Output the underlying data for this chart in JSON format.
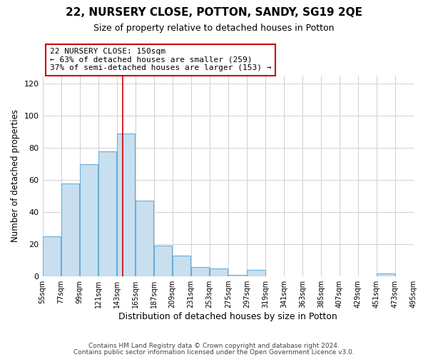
{
  "title": "22, NURSERY CLOSE, POTTON, SANDY, SG19 2QE",
  "subtitle": "Size of property relative to detached houses in Potton",
  "xlabel": "Distribution of detached houses by size in Potton",
  "ylabel": "Number of detached properties",
  "footer_line1": "Contains HM Land Registry data © Crown copyright and database right 2024.",
  "footer_line2": "Contains public sector information licensed under the Open Government Licence v3.0.",
  "bar_left_edges": [
    55,
    77,
    99,
    121,
    143,
    165,
    187,
    209,
    231,
    253,
    275,
    297,
    319,
    341,
    363,
    385,
    407,
    429,
    451,
    473
  ],
  "bar_heights": [
    25,
    58,
    70,
    78,
    89,
    47,
    19,
    13,
    6,
    5,
    1,
    4,
    0,
    0,
    0,
    0,
    0,
    0,
    2,
    0
  ],
  "bin_width": 22,
  "bar_fill_color": "#c8dff0",
  "bar_edge_color": "#6aaed6",
  "vline_x": 150,
  "vline_color": "#cc0000",
  "annotation_title": "22 NURSERY CLOSE: 150sqm",
  "annotation_line1": "← 63% of detached houses are smaller (259)",
  "annotation_line2": "37% of semi-detached houses are larger (153) →",
  "annotation_box_edge": "#cc0000",
  "annotation_box_fill": "white",
  "ylim": [
    0,
    125
  ],
  "yticks": [
    0,
    20,
    40,
    60,
    80,
    100,
    120
  ],
  "xtick_labels": [
    "55sqm",
    "77sqm",
    "99sqm",
    "121sqm",
    "143sqm",
    "165sqm",
    "187sqm",
    "209sqm",
    "231sqm",
    "253sqm",
    "275sqm",
    "297sqm",
    "319sqm",
    "341sqm",
    "363sqm",
    "385sqm",
    "407sqm",
    "429sqm",
    "451sqm",
    "473sqm",
    "495sqm"
  ],
  "background_color": "#ffffff",
  "grid_color": "#d0d0d0",
  "figsize": [
    6.0,
    5.0
  ],
  "dpi": 100
}
